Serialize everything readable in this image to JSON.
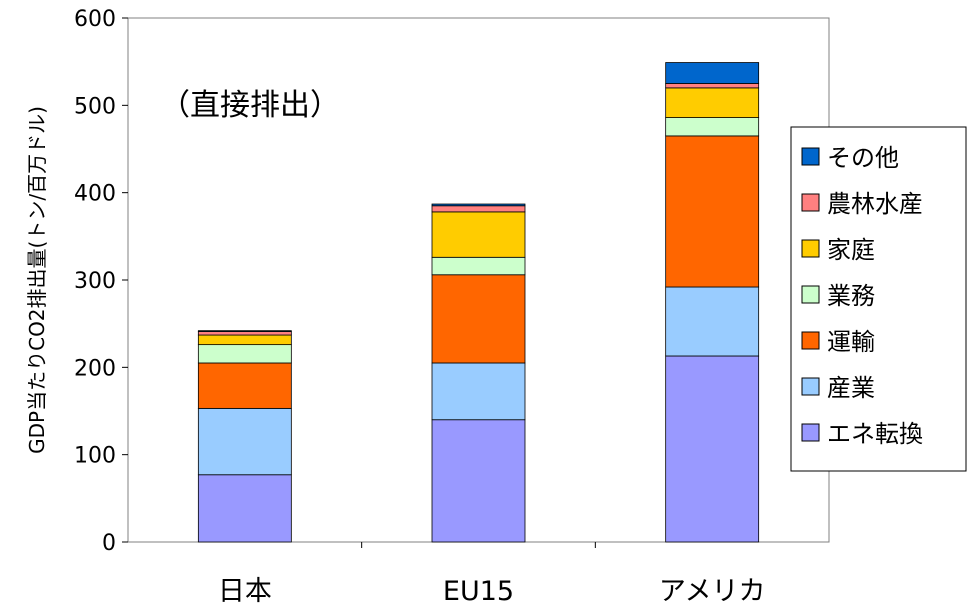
{
  "chart_data": {
    "type": "bar",
    "stacked": true,
    "annotation": "（直接排出）",
    "ylabel": "GDP当たりCO2排出量(トン/百万ドル)",
    "ylim": [
      0,
      600
    ],
    "yticks": [
      0,
      100,
      200,
      300,
      400,
      500,
      600
    ],
    "categories": [
      "日本",
      "EU15",
      "アメリカ"
    ],
    "series": [
      {
        "name": "エネ転換",
        "color": "#9999ff",
        "values": [
          77,
          140,
          213
        ]
      },
      {
        "name": "産業",
        "color": "#99ccff",
        "values": [
          76,
          65,
          79
        ]
      },
      {
        "name": "運輸",
        "color": "#ff6600",
        "values": [
          52,
          101,
          173
        ]
      },
      {
        "name": "業務",
        "color": "#ccffcc",
        "values": [
          21,
          20,
          21
        ]
      },
      {
        "name": "家庭",
        "color": "#ffcc00",
        "values": [
          11,
          52,
          34
        ]
      },
      {
        "name": "農林水産",
        "color": "#ff8080",
        "values": [
          4,
          7,
          5
        ]
      },
      {
        "name": "その他",
        "color": "#0066cc",
        "values": [
          1,
          2,
          24
        ]
      }
    ],
    "legend_order": [
      "その他",
      "農林水産",
      "家庭",
      "業務",
      "運輸",
      "産業",
      "エネ転換"
    ],
    "grid": false,
    "legend_position": "right"
  }
}
